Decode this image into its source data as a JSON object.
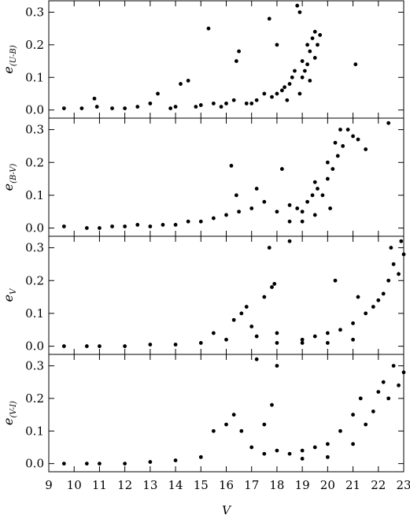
{
  "chart_data": [
    {
      "type": "scatter",
      "ylabel": "e",
      "ylabel_sub": "(U-B)",
      "color": "#000000",
      "xlim": [
        9,
        23
      ],
      "xticks": [
        9,
        10,
        11,
        12,
        13,
        14,
        15,
        16,
        17,
        18,
        19,
        20,
        21,
        22,
        23
      ],
      "ylim": [
        -0.025,
        0.335
      ],
      "yticks": [
        {
          "value": 0,
          "label": "0.0"
        },
        0.1,
        0.2,
        0.3
      ],
      "x": [
        9.6,
        10.3,
        10.8,
        10.9,
        11.5,
        12.0,
        12.5,
        13.0,
        13.3,
        13.8,
        14.0,
        14.2,
        14.5,
        14.8,
        15.0,
        15.3,
        15.5,
        15.8,
        16.0,
        16.3,
        16.4,
        16.5,
        16.8,
        17.0,
        17.2,
        17.5,
        17.7,
        17.8,
        18.0,
        18.2,
        18.3,
        18.5,
        18.6,
        18.7,
        18.8,
        18.9,
        19.0,
        19.0,
        19.1,
        19.2,
        19.2,
        19.3,
        19.4,
        19.5,
        19.5,
        19.6,
        19.7,
        21.1,
        18.0,
        18.4,
        18.9,
        19.3
      ],
      "values": [
        0.005,
        0.005,
        0.035,
        0.01,
        0.005,
        0.005,
        0.01,
        0.02,
        0.05,
        0.005,
        0.01,
        0.08,
        0.09,
        0.01,
        0.015,
        0.25,
        0.02,
        0.01,
        0.02,
        0.03,
        0.15,
        0.18,
        0.02,
        0.02,
        0.03,
        0.05,
        0.28,
        0.04,
        0.05,
        0.06,
        0.07,
        0.08,
        0.1,
        0.12,
        0.32,
        0.3,
        0.1,
        0.15,
        0.12,
        0.2,
        0.14,
        0.18,
        0.22,
        0.16,
        0.24,
        0.2,
        0.23,
        0.14,
        0.2,
        0.03,
        0.05,
        0.09
      ]
    },
    {
      "type": "scatter",
      "ylabel": "e",
      "ylabel_sub": "(B-V)",
      "color": "#000000",
      "xlim": [
        9,
        23
      ],
      "xticks": [
        9,
        10,
        11,
        12,
        13,
        14,
        15,
        16,
        17,
        18,
        19,
        20,
        21,
        22,
        23
      ],
      "ylim": [
        -0.025,
        0.335
      ],
      "yticks": [
        {
          "value": 0,
          "label": "0.0"
        },
        0.1,
        0.2,
        0.3
      ],
      "x": [
        9.6,
        10.5,
        11.0,
        11.5,
        12.0,
        12.5,
        13.0,
        13.5,
        14.0,
        14.5,
        15.0,
        15.5,
        16.0,
        16.2,
        16.4,
        16.5,
        17.0,
        17.2,
        17.5,
        18.0,
        18.2,
        18.5,
        18.8,
        19.0,
        19.2,
        19.4,
        19.5,
        19.6,
        19.8,
        20.0,
        20.0,
        20.2,
        20.3,
        20.4,
        20.5,
        20.6,
        20.8,
        21.0,
        21.2,
        21.5,
        22.4,
        19.0,
        19.5,
        20.1,
        18.5
      ],
      "values": [
        0.005,
        0.0,
        0.0,
        0.005,
        0.005,
        0.01,
        0.005,
        0.01,
        0.01,
        0.02,
        0.02,
        0.03,
        0.04,
        0.19,
        0.1,
        0.05,
        0.06,
        0.12,
        0.08,
        0.05,
        0.18,
        0.07,
        0.06,
        0.05,
        0.08,
        0.1,
        0.14,
        0.12,
        0.1,
        0.15,
        0.2,
        0.18,
        0.26,
        0.22,
        0.3,
        0.25,
        0.3,
        0.28,
        0.27,
        0.24,
        0.32,
        0.02,
        0.04,
        0.06,
        0.02
      ]
    },
    {
      "type": "scatter",
      "ylabel": "e",
      "ylabel_sub": "V",
      "color": "#000000",
      "xlim": [
        9,
        23
      ],
      "xticks": [
        9,
        10,
        11,
        12,
        13,
        14,
        15,
        16,
        17,
        18,
        19,
        20,
        21,
        22,
        23
      ],
      "ylim": [
        -0.025,
        0.335
      ],
      "yticks": [
        {
          "value": 0,
          "label": "0.0"
        },
        0.1,
        0.2,
        0.3
      ],
      "x": [
        9.6,
        10.5,
        11.0,
        12.0,
        13.0,
        14.0,
        15.0,
        15.5,
        16.0,
        16.3,
        16.6,
        16.8,
        17.0,
        17.2,
        17.5,
        17.7,
        17.8,
        17.9,
        18.0,
        18.5,
        19.0,
        19.5,
        20.0,
        20.3,
        20.5,
        21.0,
        21.2,
        21.5,
        21.8,
        22.0,
        22.2,
        22.4,
        22.6,
        22.8,
        23.0,
        22.5,
        21.0,
        20.0,
        19.0,
        18.0,
        22.9
      ],
      "values": [
        0.0,
        0.0,
        0.0,
        0.0,
        0.005,
        0.005,
        0.01,
        0.04,
        0.02,
        0.08,
        0.1,
        0.12,
        0.06,
        0.03,
        0.15,
        0.3,
        0.18,
        0.19,
        0.04,
        0.32,
        0.02,
        0.03,
        0.04,
        0.2,
        0.05,
        0.07,
        0.15,
        0.1,
        0.12,
        0.14,
        0.16,
        0.2,
        0.25,
        0.22,
        0.28,
        0.3,
        0.02,
        0.01,
        0.01,
        0.01,
        0.32
      ]
    },
    {
      "type": "scatter",
      "ylabel": "e",
      "ylabel_sub": "(V-I)",
      "xlabel": "V",
      "color": "#000000",
      "xlim": [
        9,
        23
      ],
      "xticks": [
        9,
        10,
        11,
        12,
        13,
        14,
        15,
        16,
        17,
        18,
        19,
        20,
        21,
        22,
        23
      ],
      "ylim": [
        -0.025,
        0.335
      ],
      "yticks": [
        {
          "value": 0,
          "label": "0.0"
        },
        0.1,
        0.2,
        0.3
      ],
      "x": [
        9.6,
        10.5,
        11.0,
        12.0,
        13.0,
        14.0,
        15.0,
        15.5,
        16.0,
        16.3,
        16.6,
        17.0,
        17.2,
        17.5,
        17.8,
        18.0,
        18.5,
        19.0,
        19.5,
        20.0,
        20.5,
        21.0,
        21.3,
        21.5,
        21.8,
        22.0,
        22.2,
        22.4,
        22.6,
        22.8,
        23.0,
        17.5,
        18.0,
        21.0,
        20.0,
        19.0
      ],
      "values": [
        0.0,
        0.0,
        0.0,
        0.0,
        0.005,
        0.01,
        0.02,
        0.1,
        0.12,
        0.15,
        0.1,
        0.05,
        0.32,
        0.12,
        0.18,
        0.3,
        0.03,
        0.04,
        0.05,
        0.06,
        0.1,
        0.15,
        0.2,
        0.12,
        0.16,
        0.22,
        0.25,
        0.2,
        0.3,
        0.24,
        0.28,
        0.03,
        0.04,
        0.06,
        0.02,
        0.015
      ]
    }
  ]
}
